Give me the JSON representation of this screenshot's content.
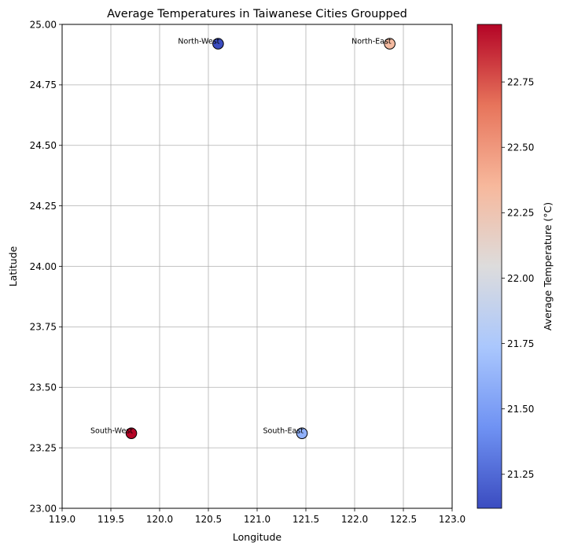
{
  "chart_data": {
    "type": "scatter",
    "title": "Average Temperatures in Taiwanese Cities Groupped",
    "xlabel": "Longitude",
    "ylabel": "Latitude",
    "xlim": [
      119.0,
      123.0
    ],
    "ylim": [
      23.0,
      25.0
    ],
    "xticks": [
      "119.0",
      "119.5",
      "120.0",
      "120.5",
      "121.0",
      "121.5",
      "122.0",
      "122.5",
      "123.0"
    ],
    "yticks": [
      "23.00",
      "23.25",
      "23.50",
      "23.75",
      "24.00",
      "24.25",
      "24.50",
      "24.75",
      "25.00"
    ],
    "grid": true,
    "points": [
      {
        "label": "North-West",
        "x": 120.6,
        "y": 24.92,
        "temperature": 21.12
      },
      {
        "label": "North-East",
        "x": 122.36,
        "y": 24.92,
        "temperature": 22.33
      },
      {
        "label": "South-West",
        "x": 119.71,
        "y": 23.31,
        "temperature": 22.97
      },
      {
        "label": "South-East",
        "x": 121.46,
        "y": 23.31,
        "temperature": 21.6
      }
    ],
    "colorbar": {
      "label": "Average Temperature (°C)",
      "colormap": "coolwarm",
      "range": [
        21.12,
        22.97
      ],
      "ticks": [
        "21.25",
        "21.50",
        "21.75",
        "22.00",
        "22.25",
        "22.50",
        "22.75"
      ],
      "colors": [
        "#3b4cc0",
        "#6f92f3",
        "#aac7fd",
        "#dddcdc",
        "#f7b89c",
        "#e7745b",
        "#b40426"
      ]
    }
  }
}
